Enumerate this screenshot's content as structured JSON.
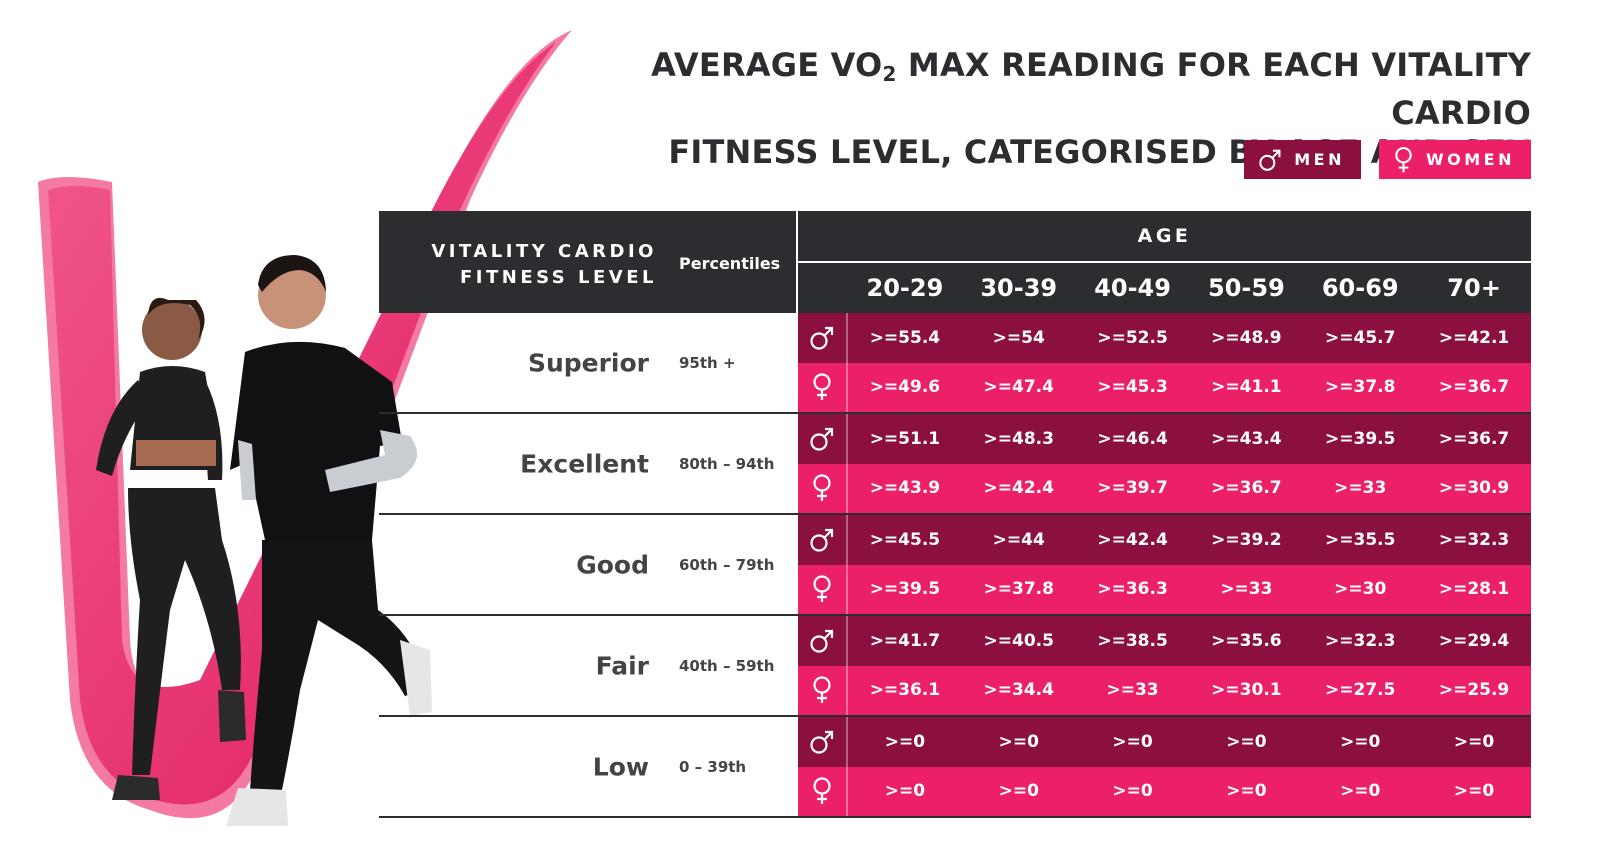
{
  "title": {
    "line1_prefix": "AVERAGE VO",
    "line1_sub": "2",
    "line1_suffix": " MAX READING FOR EACH VITALITY CARDIO",
    "line2": "FITNESS LEVEL, CATEGORISED BY AGE AND SEX"
  },
  "legend": {
    "men": "MEN",
    "women": "WOMEN"
  },
  "colors": {
    "men": "#8b0f3f",
    "women": "#ec1f69",
    "header": "#2b2d30"
  },
  "chart_data": {
    "type": "table",
    "level_header": [
      "VITALITY CARDIO",
      "FITNESS LEVEL"
    ],
    "percentile_header": "Percentiles",
    "age_header": "AGE",
    "age_groups": [
      "20-29",
      "30-39",
      "40-49",
      "50-59",
      "60-69",
      "70+"
    ],
    "rows": [
      {
        "level": "Superior",
        "percentile": "95th +",
        "men": [
          ">=55.4",
          ">=54",
          ">=52.5",
          ">=48.9",
          ">=45.7",
          ">=42.1"
        ],
        "women": [
          ">=49.6",
          ">=47.4",
          ">=45.3",
          ">=41.1",
          ">=37.8",
          ">=36.7"
        ]
      },
      {
        "level": "Excellent",
        "percentile": "80th – 94th",
        "men": [
          ">=51.1",
          ">=48.3",
          ">=46.4",
          ">=43.4",
          ">=39.5",
          ">=36.7"
        ],
        "women": [
          ">=43.9",
          ">=42.4",
          ">=39.7",
          ">=36.7",
          ">=33",
          ">=30.9"
        ]
      },
      {
        "level": "Good",
        "percentile": "60th – 79th",
        "men": [
          ">=45.5",
          ">=44",
          ">=42.4",
          ">=39.2",
          ">=35.5",
          ">=32.3"
        ],
        "women": [
          ">=39.5",
          ">=37.8",
          ">=36.3",
          ">=33",
          ">=30",
          ">=28.1"
        ]
      },
      {
        "level": "Fair",
        "percentile": "40th – 59th",
        "men": [
          ">=41.7",
          ">=40.5",
          ">=38.5",
          ">=35.6",
          ">=32.3",
          ">=29.4"
        ],
        "women": [
          ">=36.1",
          ">=34.4",
          ">=33",
          ">=30.1",
          ">=27.5",
          ">=25.9"
        ]
      },
      {
        "level": "Low",
        "percentile": "0 – 39th",
        "men": [
          ">=0",
          ">=0",
          ">=0",
          ">=0",
          ">=0",
          ">=0"
        ],
        "women": [
          ">=0",
          ">=0",
          ">=0",
          ">=0",
          ">=0",
          ">=0"
        ]
      }
    ]
  }
}
